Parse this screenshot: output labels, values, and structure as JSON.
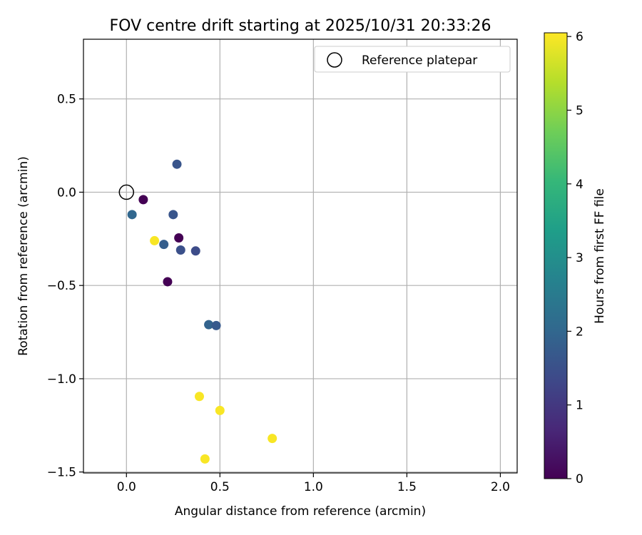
{
  "chart_data": {
    "type": "scatter",
    "title": "FOV centre drift starting at 2025/10/31 20:33:26",
    "xlabel": "Angular distance from reference (arcmin)",
    "ylabel": "Rotation from reference (arcmin)",
    "xlim": [
      -0.23,
      2.09
    ],
    "ylim": [
      -1.505,
      0.82
    ],
    "xticks": [
      0.0,
      0.5,
      1.0,
      1.5,
      2.0
    ],
    "xtick_labels": [
      "0.0",
      "0.5",
      "1.0",
      "1.5",
      "2.0"
    ],
    "yticks": [
      0.5,
      0.0,
      -0.5,
      -1.0,
      -1.5
    ],
    "ytick_labels": [
      "0.5",
      "0.0",
      "−0.5",
      "−1.0",
      "−1.5"
    ],
    "grid": true,
    "legend": {
      "position": "top-right",
      "entries": [
        {
          "label": "Reference platepar",
          "marker": "open-circle"
        }
      ]
    },
    "reference_point": {
      "x": 0.0,
      "y": 0.0
    },
    "colorbar": {
      "label": "Hours from first FF file",
      "range": [
        0,
        6.05
      ],
      "ticks": [
        0,
        1,
        2,
        3,
        4,
        5,
        6
      ],
      "tick_labels": [
        "0",
        "1",
        "2",
        "3",
        "4",
        "5",
        "6"
      ],
      "colormap": [
        "#440154",
        "#482878",
        "#3e4989",
        "#31688e",
        "#26828e",
        "#1f9e89",
        "#35b779",
        "#6ece58",
        "#b5de2b",
        "#fde725"
      ]
    },
    "points": [
      {
        "x": 0.09,
        "y": -0.04,
        "hours": 0.0
      },
      {
        "x": 0.28,
        "y": -0.245,
        "hours": 0.0
      },
      {
        "x": 0.22,
        "y": -0.48,
        "hours": 0.0
      },
      {
        "x": 0.27,
        "y": 0.15,
        "hours": 1.6
      },
      {
        "x": 0.25,
        "y": -0.12,
        "hours": 1.6
      },
      {
        "x": 0.29,
        "y": -0.31,
        "hours": 1.5
      },
      {
        "x": 0.37,
        "y": -0.315,
        "hours": 1.4
      },
      {
        "x": 0.2,
        "y": -0.28,
        "hours": 1.8
      },
      {
        "x": 0.03,
        "y": -0.12,
        "hours": 2.0
      },
      {
        "x": 0.44,
        "y": -0.71,
        "hours": 1.9
      },
      {
        "x": 0.48,
        "y": -0.715,
        "hours": 1.7
      },
      {
        "x": 0.15,
        "y": -0.26,
        "hours": 6.0
      },
      {
        "x": 0.39,
        "y": -1.095,
        "hours": 6.0
      },
      {
        "x": 0.5,
        "y": -1.17,
        "hours": 6.0
      },
      {
        "x": 0.78,
        "y": -1.32,
        "hours": 6.0
      },
      {
        "x": 0.42,
        "y": -1.43,
        "hours": 6.0
      }
    ]
  }
}
